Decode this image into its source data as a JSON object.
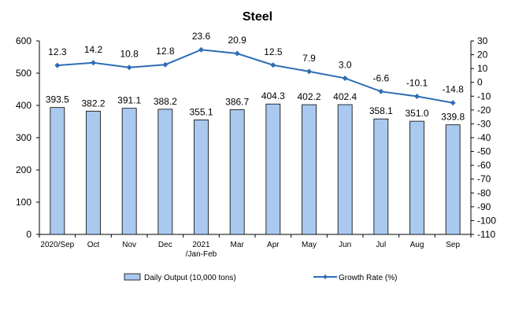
{
  "chart_data": {
    "type": "bar",
    "title": "Steel",
    "categories": [
      "2020/Sep",
      "Oct",
      "Nov",
      "Dec",
      "2021\n/Jan-Feb",
      "Mar",
      "Apr",
      "May",
      "Jun",
      "Jul",
      "Aug",
      "Sep"
    ],
    "series": [
      {
        "name": "Daily Output (10,000 tons)",
        "type": "bar",
        "axis": "left",
        "color": "#a9c9ef",
        "values": [
          393.5,
          382.2,
          391.1,
          388.2,
          355.1,
          386.7,
          404.3,
          402.2,
          402.4,
          358.1,
          351.0,
          339.8
        ],
        "labels": [
          "393.5",
          "382.2",
          "391.1",
          "388.2",
          "355.1",
          "386.7",
          "404.3",
          "402.2",
          "402.4",
          "358.1",
          "351.0",
          "339.8"
        ]
      },
      {
        "name": "Growth Rate (%)",
        "type": "line",
        "axis": "right",
        "color": "#2e6db4",
        "values": [
          12.3,
          14.2,
          10.8,
          12.8,
          23.6,
          20.9,
          12.5,
          7.9,
          3.0,
          -6.6,
          -10.1,
          -14.8
        ],
        "labels": [
          "12.3",
          "14.2",
          "10.8",
          "12.8",
          "23.6",
          "20.9",
          "12.5",
          "7.9",
          "3.0",
          "-6.6",
          "-10.1",
          "-14.8"
        ]
      }
    ],
    "y_left": {
      "ylim": [
        0,
        600
      ],
      "ticks": [
        0,
        100,
        200,
        300,
        400,
        500,
        600
      ]
    },
    "y_right": {
      "ylim": [
        -110,
        30
      ],
      "ticks": [
        30,
        20,
        10,
        0,
        -10,
        -20,
        -30,
        -40,
        -50,
        -60,
        -70,
        -80,
        -90,
        -100,
        -110
      ]
    },
    "grid": false,
    "legend_position": "bottom"
  }
}
